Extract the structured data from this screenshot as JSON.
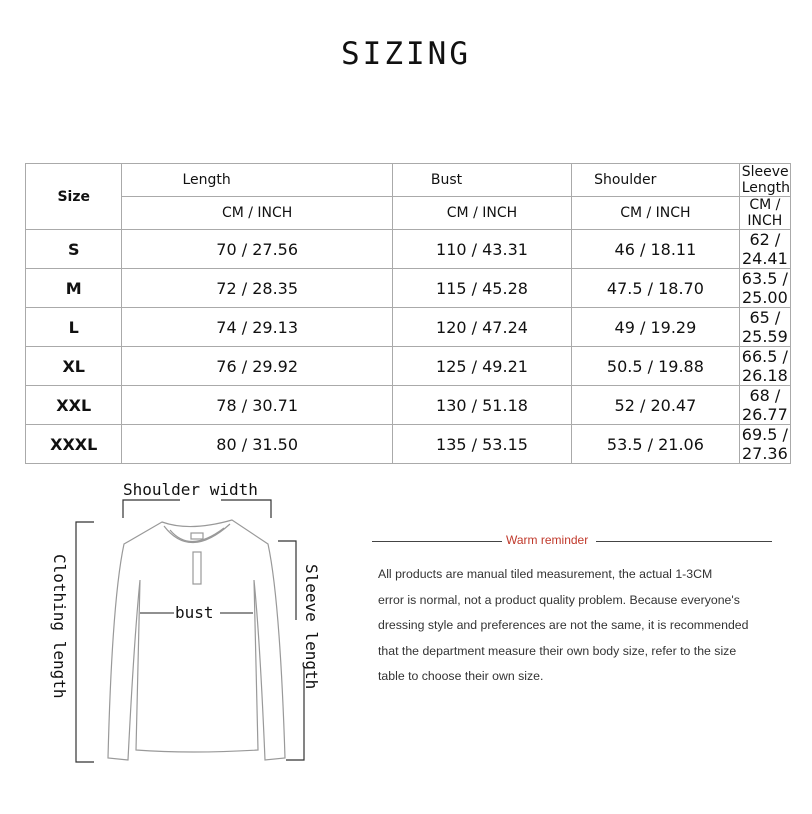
{
  "title": "SIZING",
  "table": {
    "size_header": "Size",
    "columns": [
      "Length",
      "Bust",
      "Shoulder",
      "Sleeve Length"
    ],
    "unit_label": "CM / INCH",
    "rows": [
      {
        "size": "S",
        "values": [
          "70 / 27.56",
          "110 / 43.31",
          "46 / 18.11",
          "62 / 24.41"
        ]
      },
      {
        "size": "M",
        "values": [
          "72 / 28.35",
          "115 / 45.28",
          "47.5 / 18.70",
          "63.5 / 25.00"
        ]
      },
      {
        "size": "L",
        "values": [
          "74 / 29.13",
          "120 / 47.24",
          "49 / 19.29",
          "65 / 25.59"
        ]
      },
      {
        "size": "XL",
        "values": [
          "76 / 29.92",
          "125 / 49.21",
          "50.5 / 19.88",
          "66.5 / 26.18"
        ]
      },
      {
        "size": "XXL",
        "values": [
          "78 / 30.71",
          "130 / 51.18",
          "52 / 20.47",
          "68 / 26.77"
        ]
      },
      {
        "size": "XXXL",
        "values": [
          "80 / 31.50",
          "135 / 53.15",
          "53.5 / 21.06",
          "69.5 / 27.36"
        ]
      }
    ]
  },
  "diagram": {
    "shoulder": "Shoulder width",
    "bust": "bust",
    "clothing_length": "Clothing length",
    "sleeve_length": "Sleeve length"
  },
  "reminder": {
    "title": "Warm reminder",
    "lines": [
      "All products are manual tiled measurement, the actual 1-3CM",
      "error is normal, not a product quality problem. Because everyone's",
      "dressing style and preferences are not the same, it is recommended",
      "that the department measure their own body size, refer to the size",
      "table to choose their own size."
    ]
  }
}
